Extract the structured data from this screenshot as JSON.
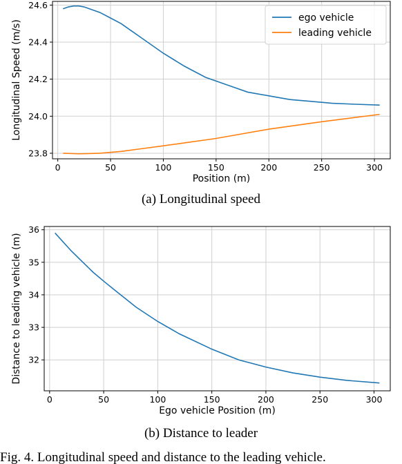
{
  "chart_data": [
    {
      "type": "line",
      "caption": "(a) Longitudinal speed",
      "xlabel": "Position (m)",
      "ylabel": "Longitudinal Speed (m/s)",
      "xlim": [
        -5,
        315
      ],
      "ylim": [
        23.77,
        24.62
      ],
      "xticks": [
        0,
        50,
        100,
        150,
        200,
        250,
        300
      ],
      "yticks": [
        23.8,
        24.0,
        24.2,
        24.4,
        24.6
      ],
      "ytick_labels": [
        "23.8",
        "24.0",
        "24.2",
        "24.4",
        "24.6"
      ],
      "grid": true,
      "legend": "top-right",
      "series": [
        {
          "name": "ego vehicle",
          "color": "#1f77b4",
          "x": [
            5,
            10,
            15,
            20,
            25,
            30,
            40,
            50,
            60,
            70,
            80,
            90,
            100,
            120,
            140,
            160,
            180,
            200,
            220,
            240,
            260,
            280,
            305
          ],
          "y": [
            24.58,
            24.59,
            24.595,
            24.595,
            24.59,
            24.58,
            24.56,
            24.53,
            24.5,
            24.46,
            24.42,
            24.38,
            24.34,
            24.27,
            24.21,
            24.17,
            24.13,
            24.11,
            24.09,
            24.08,
            24.07,
            24.065,
            24.06
          ]
        },
        {
          "name": "leading vehicle",
          "color": "#ff7f0e",
          "x": [
            5,
            20,
            40,
            60,
            80,
            100,
            120,
            150,
            200,
            250,
            305
          ],
          "y": [
            23.8,
            23.797,
            23.8,
            23.81,
            23.825,
            23.84,
            23.856,
            23.88,
            23.93,
            23.97,
            24.01
          ]
        }
      ]
    },
    {
      "type": "line",
      "caption": "(b) Distance to leader",
      "xlabel": "Ego vehicle Position (m)",
      "ylabel": "Distance to leading vehicle (m)",
      "xlim": [
        -5,
        315
      ],
      "ylim": [
        31.05,
        36.1
      ],
      "xticks": [
        0,
        50,
        100,
        150,
        200,
        250,
        300
      ],
      "yticks": [
        32,
        33,
        34,
        35,
        36
      ],
      "ytick_labels": [
        "32",
        "33",
        "34",
        "35",
        "36"
      ],
      "grid": true,
      "series": [
        {
          "color": "#1f77b4",
          "x": [
            5,
            20,
            40,
            50,
            60,
            80,
            100,
            120,
            150,
            175,
            200,
            225,
            250,
            275,
            305
          ],
          "y": [
            35.9,
            35.35,
            34.7,
            34.42,
            34.15,
            33.62,
            33.18,
            32.8,
            32.33,
            32.0,
            31.78,
            31.6,
            31.47,
            31.37,
            31.29
          ]
        }
      ]
    }
  ],
  "figure_caption": "Fig. 4.    Longitudinal speed and distance to the leading vehicle."
}
